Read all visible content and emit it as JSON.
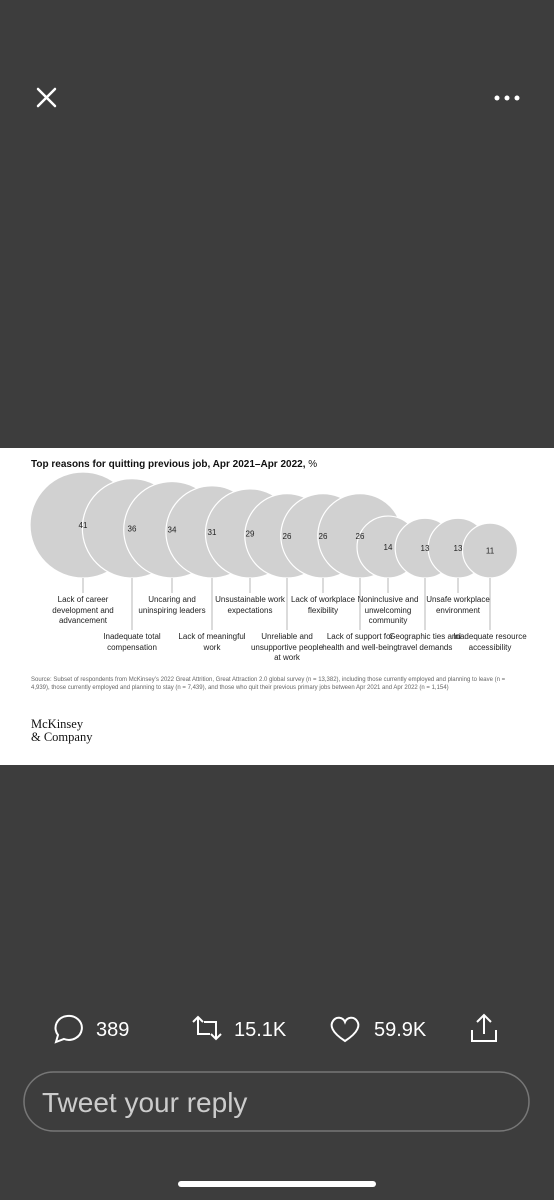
{
  "chart_data": {
    "type": "bubble",
    "title": "Top reasons for quitting previous job, Apr 2021–Apr 2022,",
    "unit": "%",
    "categories": [
      "Lack of career development and advancement",
      "Inadequate total compensation",
      "Uncaring and uninspiring leaders",
      "Lack of meaningful work",
      "Unsustainable work expectations",
      "Unreliable and unsupportive people at work",
      "Lack of workplace flexibility",
      "Lack of support for health and well-being",
      "Noninclusive and unwelcoming community",
      "Geographic ties and travel demands",
      "Unsafe workplace environment",
      "Inadequate resource accessibility"
    ],
    "values": [
      41,
      36,
      34,
      31,
      29,
      26,
      26,
      26,
      14,
      13,
      13,
      11
    ],
    "color": "#d1d1d1",
    "source": "Source: Subset of respondents from McKinsey’s 2022 Great Attrition, Great Attraction 2.0 global survey (n = 13,382), including those currently employed and planning to leave (n = 4,939), those currently employed and planning to stay (n = 7,439), and those who quit their previous primary jobs between Apr 2021 and Apr 2022 (n = 1,154)",
    "logo": [
      "McKinsey",
      "& Company"
    ]
  },
  "actions": {
    "replies": "389",
    "retweets": "15.1K",
    "likes": "59.9K"
  },
  "reply_box": "Tweet your reply"
}
